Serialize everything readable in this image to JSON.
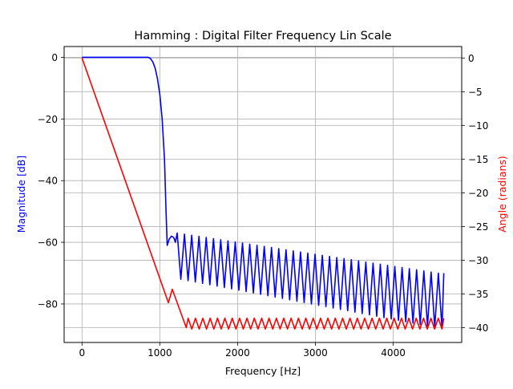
{
  "chart_data": {
    "type": "line",
    "title": "Hamming : Digital Filter Frequency Lin Scale",
    "xlabel": "Frequency [Hz]",
    "ylabel_left": "Magnitude [dB]",
    "ylabel_right": "Angle (radians)",
    "xlim": [
      -230,
      4880
    ],
    "ylim_left": [
      -92.5,
      3.5
    ],
    "ylim_right": [
      -42.2,
      1.7
    ],
    "x_ticks": [
      0,
      1000,
      2000,
      3000,
      4000
    ],
    "y_ticks_left": [
      0,
      -20,
      -40,
      -60,
      -80
    ],
    "y_ticks_right": [
      0,
      -5,
      -10,
      -15,
      -20,
      -25,
      -30,
      -35,
      -40
    ],
    "grid": true,
    "colors": {
      "magnitude": "#0000ff",
      "angle": "#ff0000",
      "axes": "#000000",
      "grid": "#b0b0b0"
    },
    "series": [
      {
        "axis": "left",
        "color": "#0000ff",
        "style": "oscillating",
        "points": [
          [
            0,
            0
          ],
          [
            850,
            0
          ],
          [
            880,
            -0.4
          ],
          [
            910,
            -1.5
          ],
          [
            940,
            -3.5
          ],
          [
            970,
            -7
          ],
          [
            1000,
            -12
          ],
          [
            1030,
            -20
          ],
          [
            1060,
            -33
          ],
          [
            1080,
            -50
          ],
          [
            1095,
            -61
          ],
          [
            1120,
            -59
          ],
          [
            1150,
            -58
          ],
          [
            1180,
            -58.5
          ],
          [
            1200,
            -60
          ]
        ],
        "ripple_start": 1200,
        "ripple_end": 4650,
        "ripple_count": 37,
        "ripple_peak_start": -57,
        "ripple_peak_end": -70,
        "ripple_trough_start": -72,
        "ripple_trough_end": -88,
        "ripple_last_point": -70
      },
      {
        "axis": "right",
        "color": "#ff0000",
        "style": "oscillating",
        "points": [
          [
            0,
            0
          ],
          [
            1110,
            -36.3
          ],
          [
            1160,
            -34.3
          ],
          [
            1340,
            -40
          ]
        ],
        "ripple_start": 1340,
        "ripple_end": 4650,
        "ripple_count": 35,
        "ripple_peak": -38.6,
        "ripple_trough": -40.2,
        "ripple_last_point": -38.6
      }
    ]
  }
}
